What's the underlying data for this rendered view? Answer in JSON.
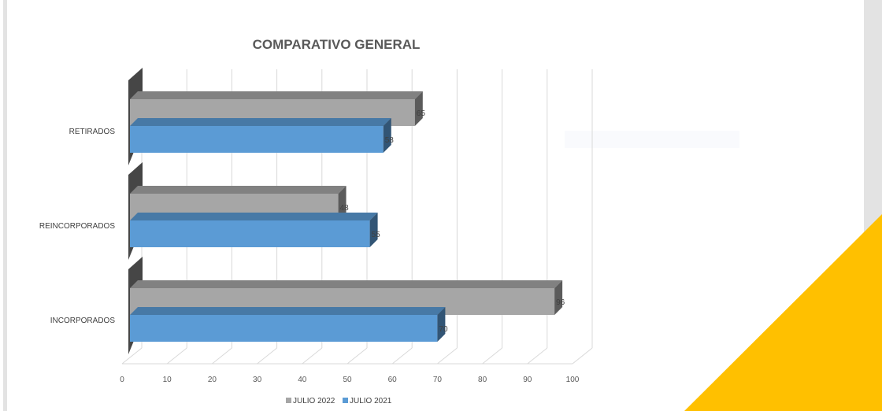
{
  "colors": {
    "series_2022": "#a6a6a6",
    "series_2021": "#5b9bd5",
    "accent_triangle": "#ffc000",
    "side_panel": "#e3e3e3"
  },
  "chart_data": {
    "type": "bar",
    "orientation": "horizontal",
    "title": "COMPARATIVO GENERAL",
    "categories": [
      "RETIRADOS",
      "REINCORPORADOS",
      "INCORPORADOS"
    ],
    "series": [
      {
        "name": "JULIO 2022",
        "values": [
          65,
          48,
          96
        ]
      },
      {
        "name": "JULIO 2021",
        "values": [
          58,
          55,
          70
        ]
      }
    ],
    "xlim": [
      0,
      100
    ],
    "xticks": [
      0,
      10,
      20,
      30,
      40,
      50,
      60,
      70,
      80,
      90,
      100
    ],
    "grid": true,
    "legend": "bottom",
    "style": "3d"
  }
}
